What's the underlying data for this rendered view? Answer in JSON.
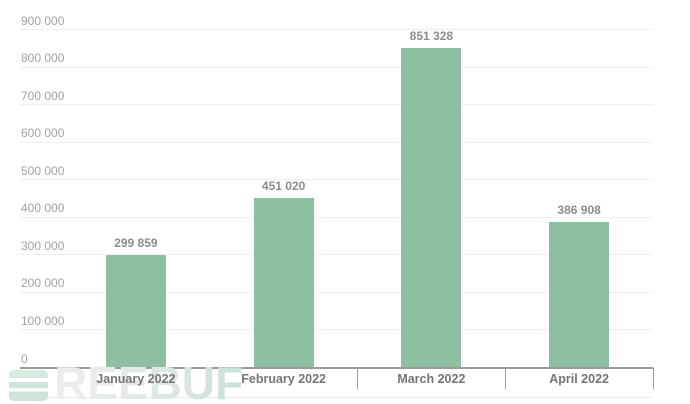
{
  "watermark": {
    "text": "REEBUF"
  },
  "chart_data": {
    "type": "bar",
    "title": "",
    "xlabel": "",
    "ylabel": "",
    "categories": [
      "January 2022",
      "February 2022",
      "March 2022",
      "April 2022"
    ],
    "values": [
      299859,
      451020,
      851328,
      386908
    ],
    "value_labels": [
      "299 859",
      "451 020",
      "851 328",
      "386 908"
    ],
    "ylim": [
      0,
      900000
    ],
    "y_tick_interval": 100000,
    "y_ticks": [
      0,
      100000,
      200000,
      300000,
      400000,
      500000,
      600000,
      700000,
      800000,
      900000
    ],
    "y_tick_labels": [
      "0",
      "100 000",
      "200 000",
      "300 000",
      "400 000",
      "500 000",
      "600 000",
      "700 000",
      "800 000",
      "900 000"
    ],
    "grid": true,
    "legend": "none",
    "colors": {
      "bar_color": "#8cc0a1",
      "grid_color": "#efefef",
      "axis_color": "#9b9b9b",
      "y_label_color": "#a2a2a2",
      "value_label_color": "#8c8c8c",
      "x_label_color": "#757575"
    }
  }
}
